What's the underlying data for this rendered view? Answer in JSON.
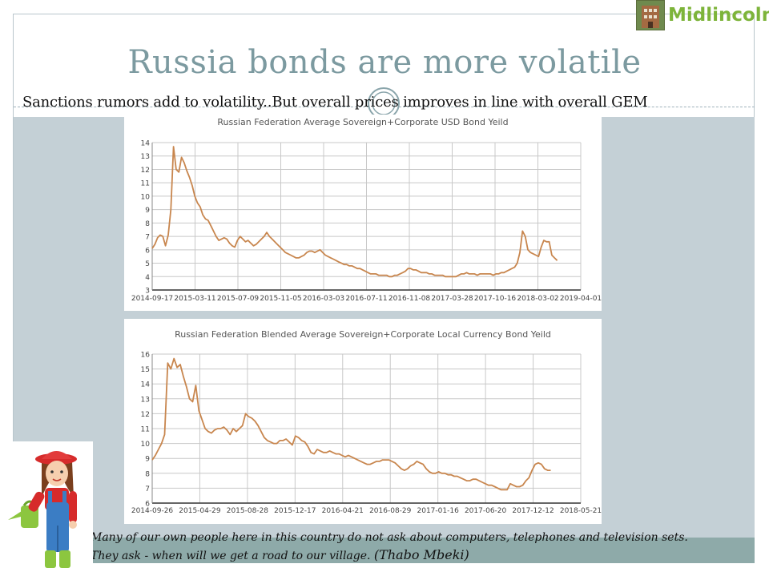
{
  "slide": {
    "title": "Russia bonds are more volatile",
    "subtitle": "Sanctions rumors add to volatility..But overall prices improves in line with overall GEM",
    "logo_text": "Midlincoln",
    "quote_line1": "Many of our own people here in this country do not ask about computers, telephones and television sets.",
    "quote_line2": "They ask - when will we get a road to our village.",
    "quote_author": "(Thabo Mbeki)",
    "colors": {
      "title": "#7c9aa0",
      "background_panel": "#c4d0d6",
      "line": "#c8864e",
      "logo": "#7db43a"
    }
  },
  "chart_data": [
    {
      "type": "line",
      "title": "Russian Federation Average Sovereign+Corporate  USD Bond Yeild",
      "x_tick_labels": [
        "2014-09-17",
        "2015-03-11",
        "2015-07-09",
        "2015-11-05",
        "2016-03-03",
        "2016-07-11",
        "2016-11-08",
        "2017-03-28",
        "2017-10-16",
        "2018-03-02",
        "2019-04-01"
      ],
      "ylim": [
        3,
        14
      ],
      "y_ticks": [
        3,
        4,
        5,
        6,
        7,
        8,
        9,
        10,
        11,
        12,
        13,
        14
      ],
      "grid": true,
      "series": [
        {
          "values": [
            6.1,
            6.4,
            6.9,
            7.1,
            7.0,
            6.3,
            7.1,
            9.0,
            13.7,
            12.0,
            11.8,
            12.9,
            12.5,
            11.9,
            11.4,
            10.8,
            10.0,
            9.5,
            9.2,
            8.6,
            8.3,
            8.2,
            7.8,
            7.4,
            7.0,
            6.7,
            6.8,
            6.9,
            6.8,
            6.5,
            6.3,
            6.2,
            6.7,
            7.0,
            6.8,
            6.6,
            6.7,
            6.5,
            6.3,
            6.4,
            6.6,
            6.8,
            7.0,
            7.3,
            7.0,
            6.8,
            6.6,
            6.4,
            6.2,
            6.0,
            5.8,
            5.7,
            5.6,
            5.5,
            5.4,
            5.4,
            5.5,
            5.6,
            5.8,
            5.9,
            5.9,
            5.8,
            5.9,
            6.0,
            5.8,
            5.6,
            5.5,
            5.4,
            5.3,
            5.2,
            5.1,
            5.0,
            4.9,
            4.9,
            4.8,
            4.8,
            4.7,
            4.6,
            4.6,
            4.5,
            4.4,
            4.3,
            4.2,
            4.2,
            4.2,
            4.1,
            4.1,
            4.1,
            4.1,
            4.0,
            4.0,
            4.1,
            4.1,
            4.2,
            4.3,
            4.4,
            4.6,
            4.6,
            4.5,
            4.5,
            4.4,
            4.3,
            4.3,
            4.3,
            4.2,
            4.2,
            4.1,
            4.1,
            4.1,
            4.1,
            4.0,
            4.0,
            4.0,
            4.0,
            4.0,
            4.1,
            4.2,
            4.2,
            4.3,
            4.2,
            4.2,
            4.2,
            4.1,
            4.2,
            4.2,
            4.2,
            4.2,
            4.2,
            4.1,
            4.2,
            4.2,
            4.3,
            4.3,
            4.4,
            4.5,
            4.6,
            4.7,
            5.0,
            5.8,
            7.4,
            7.0,
            6.0,
            5.8,
            5.7,
            5.6,
            5.5,
            6.2,
            6.7,
            6.6,
            6.6,
            5.6,
            5.4,
            5.2
          ]
        }
      ]
    },
    {
      "type": "line",
      "title": "Russian Federation Blended Average Sovereign+Corporate   Local Currency Bond Yeild",
      "x_tick_labels": [
        "2014-09-26",
        "2015-04-29",
        "2015-08-28",
        "2015-12-17",
        "2016-04-21",
        "2016-08-29",
        "2017-01-16",
        "2017-06-20",
        "2017-12-12",
        "2018-05-21"
      ],
      "ylim": [
        6,
        16
      ],
      "y_ticks": [
        6,
        7,
        8,
        9,
        10,
        11,
        12,
        13,
        14,
        15,
        16
      ],
      "grid": true,
      "series": [
        {
          "values": [
            8.9,
            9.2,
            9.6,
            10.0,
            10.6,
            15.4,
            15.0,
            15.7,
            15.1,
            15.3,
            14.5,
            13.8,
            13.0,
            12.8,
            13.9,
            12.2,
            11.6,
            11.0,
            10.8,
            10.7,
            10.9,
            11.0,
            11.0,
            11.1,
            10.9,
            10.6,
            11.0,
            10.8,
            11.0,
            11.2,
            12.0,
            11.8,
            11.7,
            11.5,
            11.2,
            10.8,
            10.4,
            10.2,
            10.1,
            10.0,
            10.0,
            10.2,
            10.2,
            10.3,
            10.1,
            9.9,
            10.5,
            10.4,
            10.2,
            10.1,
            9.8,
            9.4,
            9.3,
            9.6,
            9.5,
            9.4,
            9.4,
            9.5,
            9.4,
            9.3,
            9.3,
            9.2,
            9.1,
            9.2,
            9.1,
            9.0,
            8.9,
            8.8,
            8.7,
            8.6,
            8.6,
            8.7,
            8.8,
            8.8,
            8.9,
            8.9,
            8.9,
            8.8,
            8.7,
            8.5,
            8.3,
            8.2,
            8.3,
            8.5,
            8.6,
            8.8,
            8.7,
            8.6,
            8.3,
            8.1,
            8.0,
            8.0,
            8.1,
            8.0,
            8.0,
            7.9,
            7.9,
            7.8,
            7.8,
            7.7,
            7.6,
            7.5,
            7.5,
            7.6,
            7.6,
            7.5,
            7.4,
            7.3,
            7.2,
            7.2,
            7.1,
            7.0,
            6.9,
            6.9,
            6.9,
            7.3,
            7.2,
            7.1,
            7.1,
            7.2,
            7.5,
            7.7,
            8.2,
            8.6,
            8.7,
            8.6,
            8.3,
            8.2,
            8.2
          ]
        }
      ]
    }
  ]
}
